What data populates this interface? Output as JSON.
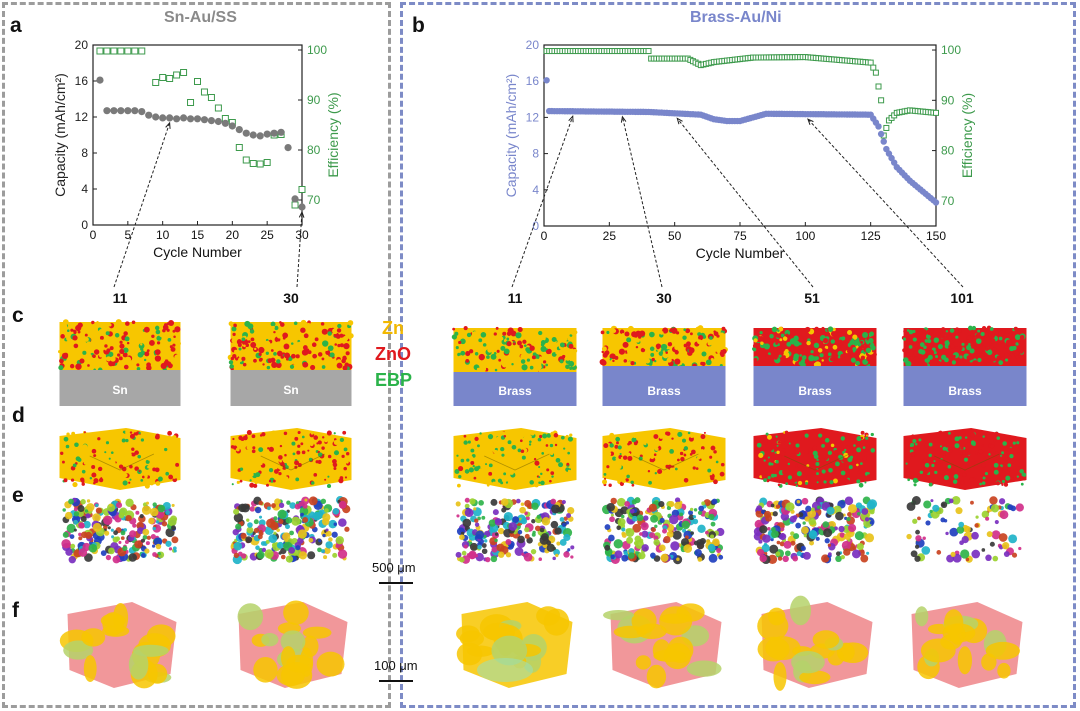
{
  "panel_a": {
    "label": "a",
    "title": "Sn-Au/SS",
    "chart_data": {
      "type": "scatter",
      "title": "Sn-Au/SS",
      "xlabel": "Cycle Number",
      "ylabel_left": "Capacity (mAh/cm²)",
      "ylabel_right": "Efficiency (%)",
      "xlim": [
        0,
        30
      ],
      "ylim_left": [
        0,
        20
      ],
      "ylim_right": [
        65,
        101
      ],
      "xticks": [
        0,
        5,
        10,
        15,
        20,
        25,
        30
      ],
      "yticks_left": [
        0,
        4,
        8,
        12,
        16,
        20
      ],
      "yticks_right": [
        70,
        80,
        90,
        100
      ],
      "series": [
        {
          "name": "Capacity",
          "axis": "left",
          "marker": "circle",
          "color": "#7a7a7a",
          "x": [
            1,
            2,
            3,
            4,
            5,
            6,
            7,
            8,
            9,
            10,
            11,
            12,
            13,
            14,
            15,
            16,
            17,
            18,
            19,
            20,
            21,
            22,
            23,
            24,
            25,
            26,
            27,
            28,
            29,
            30
          ],
          "y": [
            16.1,
            12.7,
            12.7,
            12.7,
            12.7,
            12.7,
            12.6,
            12.2,
            12.0,
            11.9,
            11.9,
            11.8,
            11.9,
            11.8,
            11.8,
            11.7,
            11.6,
            11.5,
            11.3,
            11.0,
            10.6,
            10.2,
            10.0,
            9.9,
            10.1,
            10.2,
            10.3,
            8.6,
            2.9,
            2.0
          ]
        },
        {
          "name": "Efficiency",
          "axis": "right",
          "marker": "square",
          "color": "#3d9a4c",
          "x": [
            1,
            2,
            3,
            4,
            5,
            6,
            7,
            8,
            9,
            10,
            11,
            12,
            13,
            14,
            15,
            16,
            17,
            18,
            19,
            20,
            21,
            22,
            23,
            24,
            25,
            26,
            27,
            28,
            29,
            30
          ],
          "y": [
            99.8,
            99.8,
            99.8,
            99.8,
            99.8,
            99.8,
            99.8,
            null,
            93.5,
            94.5,
            94.3,
            95.0,
            95.5,
            89.5,
            93.7,
            91.6,
            90.5,
            88.4,
            86.3,
            85.5,
            80.5,
            78.0,
            77.3,
            77.2,
            77.5,
            83.0,
            83.1,
            null,
            69.0,
            72.1
          ]
        }
      ],
      "annotations": [
        {
          "cycle": 11,
          "label": "11"
        },
        {
          "cycle": 30,
          "label": "30"
        }
      ]
    }
  },
  "panel_b": {
    "label": "b",
    "title": "Brass-Au/Ni",
    "chart_data": {
      "type": "scatter",
      "title": "Brass-Au/Ni",
      "xlabel": "Cycle Number",
      "ylabel_left": "Capacity (mAh/cm²)",
      "ylabel_right": "Efficiency (%)",
      "xlim": [
        0,
        150
      ],
      "ylim_left": [
        0,
        20
      ],
      "ylim_right": [
        65,
        101
      ],
      "xticks": [
        0,
        25,
        50,
        75,
        100,
        125,
        150
      ],
      "yticks_left": [
        0,
        4,
        8,
        12,
        16,
        20
      ],
      "yticks_right": [
        70,
        80,
        90,
        100
      ],
      "capacity_keypoints": {
        "x": [
          1,
          2,
          40,
          60,
          65,
          70,
          75,
          80,
          85,
          125,
          128,
          131,
          135,
          140,
          145,
          150
        ],
        "y": [
          16.1,
          12.7,
          12.6,
          12.3,
          11.8,
          11.6,
          11.6,
          12.0,
          12.4,
          12.3,
          11.0,
          8.5,
          6.5,
          5.0,
          3.8,
          2.6
        ]
      },
      "efficiency_keypoints": {
        "x": [
          1,
          40,
          41,
          55,
          60,
          65,
          80,
          100,
          125,
          127,
          129,
          130,
          132,
          135,
          140,
          150
        ],
        "y": [
          99.8,
          99.8,
          98.3,
          98.3,
          97.0,
          97.6,
          98.5,
          98.6,
          97.5,
          95.5,
          90.0,
          83.0,
          86.0,
          87.5,
          88.0,
          87.5
        ]
      },
      "series": [
        {
          "name": "Capacity",
          "axis": "left",
          "marker": "circle",
          "color": "#7986cb"
        },
        {
          "name": "Efficiency",
          "axis": "right",
          "marker": "square",
          "color": "#3d9a4c"
        }
      ],
      "annotations": [
        {
          "cycle": 11,
          "label": "11"
        },
        {
          "cycle": 30,
          "label": "30"
        },
        {
          "cycle": 51,
          "label": "51"
        },
        {
          "cycle": 101,
          "label": "101"
        }
      ]
    }
  },
  "row_labels": {
    "c": "c",
    "d": "d",
    "e": "e",
    "f": "f"
  },
  "legend": {
    "zn": "Zn",
    "zno": "ZnO",
    "ebp": "EBP",
    "zn_color": "#f7c600",
    "zno_color": "#e0191e",
    "ebp_color": "#2bb34a"
  },
  "substrates": {
    "sn": "Sn",
    "brass": "Brass",
    "sn_color": "#a7a7a7",
    "brass_color": "#7986cb"
  },
  "scale_bars": {
    "e": "500 μm",
    "f": "100 μm"
  }
}
